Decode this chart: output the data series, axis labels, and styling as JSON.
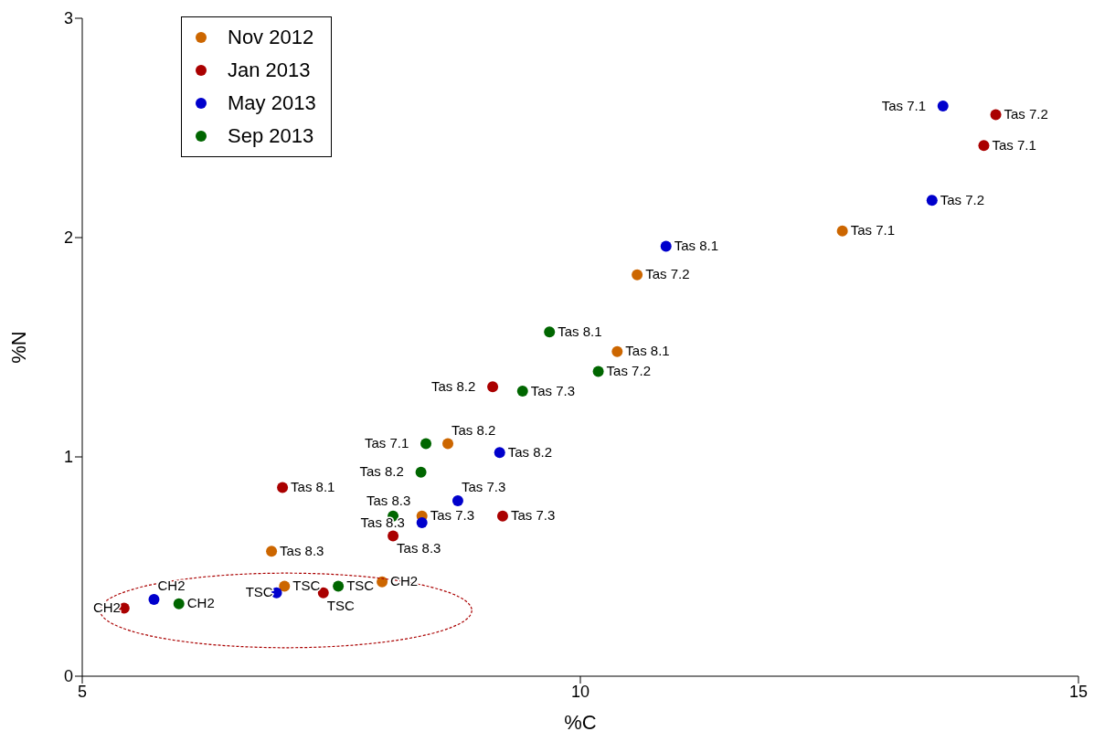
{
  "chart_data": {
    "type": "scatter",
    "xlabel": "%C",
    "ylabel": "%N",
    "xlim": [
      5,
      15
    ],
    "xticks": [
      5,
      10,
      15
    ],
    "ylim": [
      0,
      3
    ],
    "yticks": [
      0,
      1,
      2,
      3
    ],
    "grid": false,
    "legend": "top left",
    "marker": "circle",
    "series": [
      {
        "name": "Nov 2012",
        "color": "#cc6600",
        "x": [
          12.63,
          10.57,
          10.37,
          8.67,
          8.41,
          6.9,
          7.03,
          8.01
        ],
        "values": [
          2.03,
          1.83,
          1.48,
          1.06,
          0.73,
          0.57,
          0.41,
          0.43
        ]
      },
      {
        "name": "Jan 2013",
        "color": "#aa0000",
        "x": [
          14.17,
          14.05,
          9.12,
          7.01,
          9.22,
          8.12,
          7.42,
          5.42
        ],
        "values": [
          2.56,
          2.42,
          1.32,
          0.86,
          0.73,
          0.64,
          0.38,
          0.31
        ]
      },
      {
        "name": "May 2013",
        "color": "#0000cc",
        "x": [
          13.64,
          13.53,
          10.86,
          9.19,
          8.77,
          8.41,
          6.95,
          5.72
        ],
        "values": [
          2.6,
          2.17,
          1.96,
          1.02,
          0.8,
          0.7,
          0.38,
          0.35
        ]
      },
      {
        "name": "Sep 2013",
        "color": "#006600",
        "x": [
          9.69,
          10.18,
          9.42,
          8.45,
          8.4,
          8.12,
          7.57,
          5.97
        ],
        "values": [
          1.57,
          1.39,
          1.3,
          1.06,
          0.93,
          0.73,
          0.41,
          0.33
        ]
      }
    ],
    "annotations": [
      {
        "text": "Tas 7.1",
        "x": 12.63,
        "y": 2.03
      },
      {
        "text": "Tas 7.2",
        "x": 10.57,
        "y": 1.83
      },
      {
        "text": "Tas 8.1",
        "x": 10.37,
        "y": 1.48
      },
      {
        "text": "Tas 8.2",
        "x": 8.67,
        "y": 1.06
      },
      {
        "text": "Tas 7.3",
        "x": 8.41,
        "y": 0.73
      },
      {
        "text": "Tas 8.3",
        "x": 6.9,
        "y": 0.57
      },
      {
        "text": "TSC",
        "x": 7.03,
        "y": 0.41
      },
      {
        "text": "CH2",
        "x": 8.01,
        "y": 0.43
      },
      {
        "text": "Tas 7.2",
        "x": 14.17,
        "y": 2.56
      },
      {
        "text": "Tas 7.1",
        "x": 14.05,
        "y": 2.42
      },
      {
        "text": "Tas 8.2",
        "x": 9.12,
        "y": 1.32
      },
      {
        "text": "Tas 8.1",
        "x": 7.01,
        "y": 0.86
      },
      {
        "text": "Tas 7.3",
        "x": 9.22,
        "y": 0.73
      },
      {
        "text": "Tas 8.3",
        "x": 8.12,
        "y": 0.64
      },
      {
        "text": "TSC",
        "x": 7.42,
        "y": 0.38
      },
      {
        "text": "CH2",
        "x": 5.42,
        "y": 0.31
      },
      {
        "text": "Tas 7.1",
        "x": 13.64,
        "y": 2.6
      },
      {
        "text": "Tas 7.2",
        "x": 13.53,
        "y": 2.17
      },
      {
        "text": "Tas 8.1",
        "x": 10.86,
        "y": 1.96
      },
      {
        "text": "Tas 8.2",
        "x": 9.19,
        "y": 1.02
      },
      {
        "text": "Tas 7.3",
        "x": 8.77,
        "y": 0.8
      },
      {
        "text": "Tas 8.3",
        "x": 8.41,
        "y": 0.7
      },
      {
        "text": "TSC",
        "x": 6.95,
        "y": 0.38
      },
      {
        "text": "CH2",
        "x": 5.72,
        "y": 0.35
      },
      {
        "text": "Tas 8.1",
        "x": 9.69,
        "y": 1.57
      },
      {
        "text": "Tas 7.2",
        "x": 10.18,
        "y": 1.39
      },
      {
        "text": "Tas 7.3",
        "x": 9.42,
        "y": 1.3
      },
      {
        "text": "Tas 7.1",
        "x": 8.45,
        "y": 1.06
      },
      {
        "text": "Tas 8.2",
        "x": 8.4,
        "y": 0.93
      },
      {
        "text": "Tas 8.3",
        "x": 8.12,
        "y": 0.73
      },
      {
        "text": "TSC",
        "x": 7.57,
        "y": 0.41
      },
      {
        "text": "CH2",
        "x": 5.97,
        "y": 0.33
      }
    ]
  }
}
